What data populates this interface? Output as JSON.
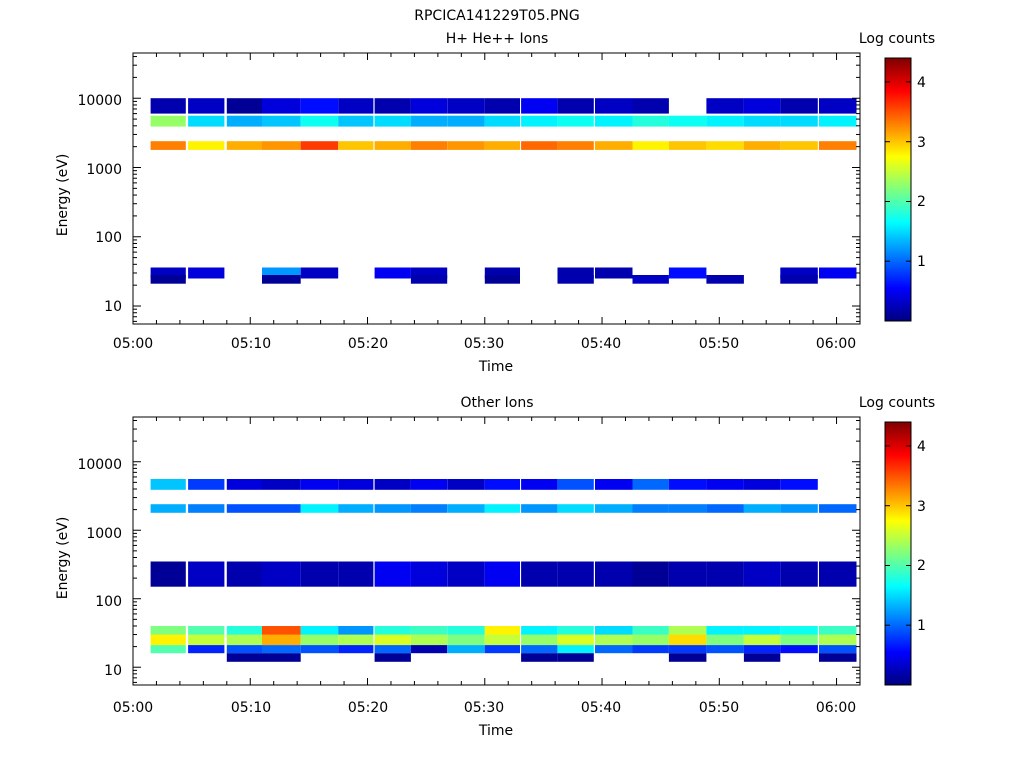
{
  "figure_title": "RPCICA141229T05.PNG",
  "colors": {
    "colormap": [
      "#00007f",
      "#0000ff",
      "#007fff",
      "#00ffff",
      "#7fff7f",
      "#ffff00",
      "#ff7f00",
      "#ff0000",
      "#7f0000"
    ]
  },
  "chart_data": [
    {
      "type": "heatmap",
      "title": "H+ He++ Ions",
      "xlabel": "Time",
      "ylabel": "Energy (eV)",
      "x_ticks": [
        "05:00",
        "05:10",
        "05:20",
        "05:30",
        "05:40",
        "05:50",
        "06:00"
      ],
      "xlim": [
        "05:00",
        "06:02"
      ],
      "yscale": "log",
      "ylim": [
        5.5,
        45000
      ],
      "y_ticks": [
        "10",
        "100",
        "1000",
        "10000"
      ],
      "colorbar": {
        "label": "Log counts",
        "range": [
          0,
          4.4
        ],
        "ticks": [
          "1",
          "2",
          "3",
          "4"
        ]
      },
      "time_bins_minutes_after_0500": [
        [
          1.5,
          4.5
        ],
        [
          4.7,
          7.8
        ],
        [
          8,
          11
        ],
        [
          11,
          14.3
        ],
        [
          14.3,
          17.5
        ],
        [
          17.5,
          20.5
        ],
        [
          20.6,
          23.7
        ],
        [
          23.7,
          26.8
        ],
        [
          26.8,
          30
        ],
        [
          30,
          33
        ],
        [
          33.1,
          36.2
        ],
        [
          36.2,
          39.3
        ],
        [
          39.4,
          42.6
        ],
        [
          42.6,
          45.7
        ],
        [
          45.7,
          48.9
        ],
        [
          48.9,
          52.1
        ],
        [
          52.1,
          55.2
        ],
        [
          55.2,
          58.4
        ],
        [
          58.5,
          61.7
        ]
      ],
      "rows": [
        {
          "energy_eV": [
            1800,
            2400
          ],
          "values": [
            3.3,
            2.8,
            3.1,
            3.2,
            3.6,
            3.0,
            3.1,
            3.3,
            3.2,
            3.1,
            3.4,
            3.3,
            3.1,
            2.8,
            3.0,
            2.9,
            3.1,
            3.0,
            3.3
          ]
        },
        {
          "energy_eV": [
            3900,
            5600
          ],
          "values": [
            2.3,
            1.5,
            1.3,
            1.4,
            1.7,
            1.4,
            1.5,
            1.3,
            1.3,
            1.5,
            1.6,
            1.7,
            1.6,
            1.8,
            1.7,
            1.6,
            1.5,
            1.5,
            1.6
          ]
        },
        {
          "energy_eV": [
            25,
            36
          ],
          "values": [
            0.3,
            0.4,
            null,
            1.2,
            0.3,
            null,
            0.5,
            0.3,
            null,
            0.2,
            null,
            0.2,
            0.2,
            null,
            0.6,
            null,
            null,
            0.3,
            0.5
          ]
        },
        {
          "energy_eV": [
            21,
            28
          ],
          "values": [
            0.1,
            null,
            null,
            0.1,
            null,
            null,
            null,
            0.2,
            null,
            0.1,
            null,
            0.2,
            null,
            0.3,
            null,
            0.2,
            null,
            0.2,
            null
          ]
        },
        {
          "energy_eV": [
            6000,
            10000
          ],
          "values": [
            0.2,
            0.3,
            0.1,
            0.4,
            0.6,
            0.3,
            0.2,
            0.4,
            0.3,
            0.2,
            0.5,
            0.2,
            0.3,
            0.2,
            null,
            0.3,
            0.4,
            0.2,
            0.3
          ]
        }
      ]
    },
    {
      "type": "heatmap",
      "title": "Other Ions",
      "xlabel": "Time",
      "ylabel": "Energy (eV)",
      "x_ticks": [
        "05:00",
        "05:10",
        "05:20",
        "05:30",
        "05:40",
        "05:50",
        "06:00"
      ],
      "xlim": [
        "05:00",
        "06:02"
      ],
      "yscale": "log",
      "ylim": [
        5.5,
        45000
      ],
      "y_ticks": [
        "10",
        "100",
        "1000",
        "10000"
      ],
      "colorbar": {
        "label": "Log counts",
        "range": [
          0,
          4.4
        ],
        "ticks": [
          "1",
          "2",
          "3",
          "4"
        ]
      },
      "time_bins_minutes_after_0500": [
        [
          1.5,
          4.5
        ],
        [
          4.7,
          7.8
        ],
        [
          8,
          11
        ],
        [
          11,
          14.3
        ],
        [
          14.3,
          17.5
        ],
        [
          17.5,
          20.5
        ],
        [
          20.6,
          23.7
        ],
        [
          23.7,
          26.8
        ],
        [
          26.8,
          30
        ],
        [
          30,
          33
        ],
        [
          33.1,
          36.2
        ],
        [
          36.2,
          39.3
        ],
        [
          39.4,
          42.6
        ],
        [
          42.6,
          45.7
        ],
        [
          45.7,
          48.9
        ],
        [
          48.9,
          52.1
        ],
        [
          52.1,
          55.2
        ],
        [
          55.2,
          58.4
        ],
        [
          58.5,
          61.7
        ]
      ],
      "rows": [
        {
          "energy_eV": [
            21,
            30
          ],
          "values": [
            2.8,
            2.5,
            2.4,
            3.1,
            2.3,
            2.4,
            2.6,
            2.4,
            2.2,
            2.5,
            2.3,
            2.6,
            2.4,
            2.3,
            2.9,
            2.2,
            2.5,
            2.2,
            2.4
          ]
        },
        {
          "energy_eV": [
            30,
            40
          ],
          "values": [
            2.2,
            2.0,
            1.8,
            3.5,
            1.6,
            1.2,
            1.8,
            1.9,
            1.8,
            2.8,
            1.6,
            1.8,
            1.5,
            1.9,
            2.4,
            1.6,
            1.6,
            1.7,
            1.9
          ]
        },
        {
          "energy_eV": [
            16,
            21
          ],
          "values": [
            2.0,
            0.7,
            0.9,
            1.0,
            0.9,
            0.7,
            1.0,
            0.2,
            1.3,
            0.8,
            1.0,
            1.6,
            1.0,
            0.8,
            0.8,
            0.9,
            0.7,
            0.6,
            0.9
          ]
        },
        {
          "energy_eV": [
            12,
            16
          ],
          "values": [
            null,
            null,
            0.1,
            0.1,
            null,
            null,
            0.1,
            null,
            null,
            null,
            0.1,
            0.1,
            null,
            null,
            0.1,
            null,
            0.1,
            null,
            0.1
          ]
        },
        {
          "energy_eV": [
            1800,
            2400
          ],
          "values": [
            1.3,
            1.1,
            0.9,
            0.9,
            1.6,
            1.3,
            1.2,
            1.1,
            1.3,
            1.6,
            1.2,
            1.5,
            1.3,
            1.1,
            1.1,
            1.0,
            1.3,
            1.2,
            1.0
          ]
        },
        {
          "energy_eV": [
            3900,
            5600
          ],
          "values": [
            1.4,
            0.8,
            0.4,
            0.3,
            0.5,
            0.4,
            0.3,
            0.5,
            0.3,
            0.6,
            0.5,
            0.9,
            0.5,
            1.0,
            0.6,
            0.5,
            0.4,
            0.6,
            null
          ]
        },
        {
          "energy_eV": [
            150,
            350
          ],
          "values": [
            0.1,
            0.3,
            0.2,
            0.3,
            0.2,
            0.2,
            0.5,
            0.4,
            0.3,
            0.5,
            0.2,
            0.2,
            0.2,
            0.1,
            0.2,
            0.2,
            0.3,
            0.2,
            0.2
          ]
        }
      ]
    }
  ]
}
